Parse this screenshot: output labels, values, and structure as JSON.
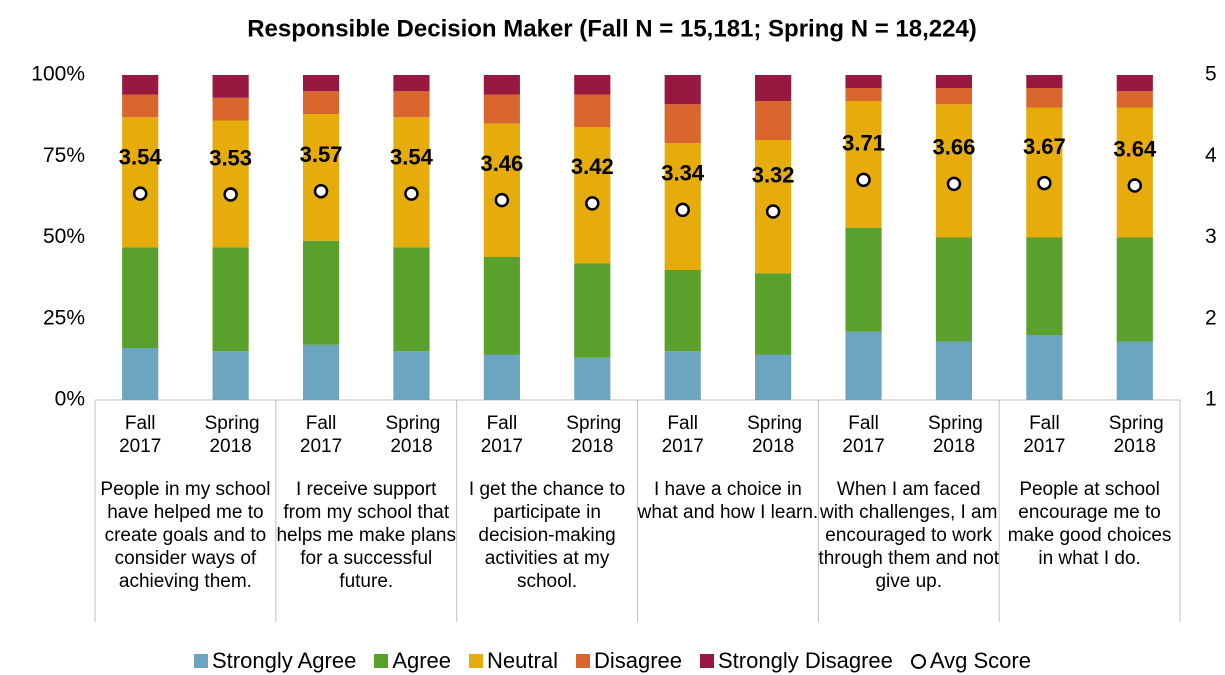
{
  "chart_data": {
    "type": "bar",
    "stacked": true,
    "title": "Responsible Decision Maker (Fall N = 15,181; Spring N = 18,224)",
    "groups": [
      "People in my school have helped me to create goals and to consider ways of achieving them.",
      "I receive support from my school that helps me make plans for a successful future.",
      "I get the chance to participate in decision-making activities at my school.",
      "I have a choice in what and how I learn.",
      "When I am faced with challenges, I am encouraged to work through them and not give up.",
      "People at school encourage me to make good choices in what I do."
    ],
    "categories": [
      "Fall 2017",
      "Spring 2018",
      "Fall 2017",
      "Spring 2018",
      "Fall 2017",
      "Spring 2018",
      "Fall 2017",
      "Spring 2018",
      "Fall 2017",
      "Spring 2018",
      "Fall 2017",
      "Spring 2018"
    ],
    "series": [
      {
        "name": "Strongly Agree",
        "color": "#6ca5c0",
        "values": [
          16,
          15,
          17,
          15,
          14,
          13,
          15,
          14,
          21,
          18,
          20,
          18
        ]
      },
      {
        "name": "Agree",
        "color": "#5aa02c",
        "values": [
          31,
          32,
          32,
          32,
          30,
          29,
          25,
          25,
          32,
          32,
          30,
          32
        ]
      },
      {
        "name": "Neutral",
        "color": "#e5ac0b",
        "values": [
          40,
          39,
          39,
          40,
          41,
          42,
          39,
          41,
          39,
          41,
          40,
          40
        ]
      },
      {
        "name": "Disagree",
        "color": "#d9662d",
        "values": [
          7,
          7,
          7,
          8,
          9,
          10,
          12,
          12,
          4,
          5,
          6,
          5
        ]
      },
      {
        "name": "Strongly Disagree",
        "color": "#98193f",
        "values": [
          6,
          7,
          5,
          5,
          6,
          6,
          9,
          8,
          4,
          4,
          4,
          5
        ]
      },
      {
        "name": "Avg Score",
        "axis": "y2",
        "type": "scatter",
        "color": "#ffffff",
        "values": [
          3.54,
          3.53,
          3.57,
          3.54,
          3.46,
          3.42,
          3.34,
          3.32,
          3.71,
          3.66,
          3.67,
          3.64
        ]
      }
    ],
    "ylim": [
      0,
      100
    ],
    "yticks": [
      {
        "value": 0,
        "label": "0%"
      },
      {
        "value": 25,
        "label": "25%"
      },
      {
        "value": 50,
        "label": "50%"
      },
      {
        "value": 75,
        "label": "75%"
      },
      {
        "value": 100,
        "label": "100%"
      }
    ],
    "y2lim": [
      1,
      5
    ],
    "y2ticks": [
      1,
      2,
      3,
      4,
      5
    ],
    "legend": "bottom"
  }
}
